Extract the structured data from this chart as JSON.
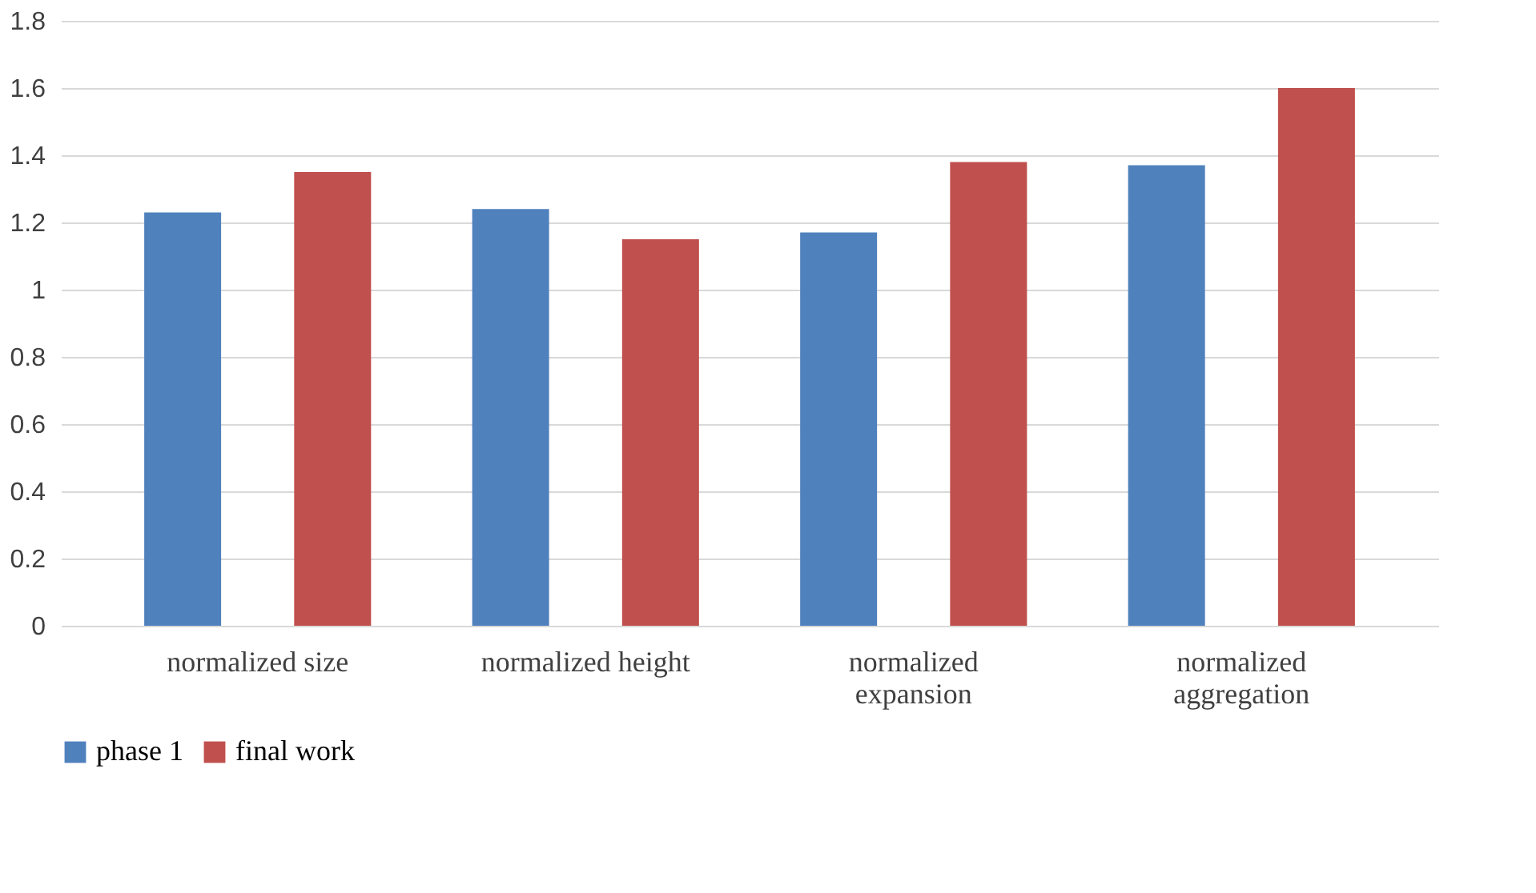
{
  "chart_data": {
    "type": "bar",
    "categories": [
      "normalized size",
      "normalized height",
      "normalized expansion",
      "normalized aggregation"
    ],
    "series": [
      {
        "name": "phase 1",
        "color": "#4f81bd",
        "values": [
          1.23,
          1.24,
          1.17,
          1.37
        ]
      },
      {
        "name": "final work",
        "color": "#c0504d",
        "values": [
          1.35,
          1.15,
          1.38,
          1.6
        ]
      }
    ],
    "ylim": [
      0,
      1.8
    ],
    "yticks": [
      0,
      0.2,
      0.4,
      0.6,
      0.8,
      1,
      1.2,
      1.4,
      1.6,
      1.8
    ],
    "grid": "y",
    "legend": "bottom"
  }
}
